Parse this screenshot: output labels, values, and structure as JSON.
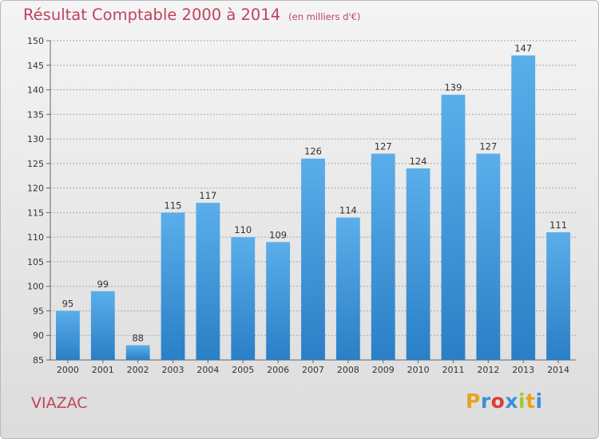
{
  "header": {
    "title": "Résultat Comptable 2000 à 2014",
    "subtitle": "(en milliers d'€)"
  },
  "footer": {
    "commune": "VIAZAC",
    "logo_letters": [
      "P",
      "r",
      "o",
      "x",
      "i",
      "t",
      "i"
    ],
    "logo_colors": [
      "#e8a31a",
      "#3a8fd8",
      "#e03a3a",
      "#3a8fd8",
      "#9acd32",
      "#e8a31a",
      "#3a8fd8"
    ]
  },
  "colors": {
    "bar_top": "#5aaeea",
    "bar_bottom": "#2a7fc6",
    "grid": "#a8a8a8",
    "title": "#c0435e"
  },
  "chart_data": {
    "type": "bar",
    "title": "Résultat Comptable 2000 à 2014",
    "subtitle": "(en milliers d'€)",
    "categories": [
      "2000",
      "2001",
      "2002",
      "2003",
      "2004",
      "2005",
      "2006",
      "2007",
      "2008",
      "2009",
      "2010",
      "2011",
      "2012",
      "2013",
      "2014"
    ],
    "values": [
      95,
      99,
      88,
      115,
      117,
      110,
      109,
      126,
      114,
      127,
      124,
      139,
      127,
      147,
      111
    ],
    "ylim": [
      85,
      150
    ],
    "yticks": [
      85,
      90,
      95,
      100,
      105,
      110,
      115,
      120,
      125,
      130,
      135,
      140,
      145,
      150
    ],
    "grid": true,
    "data_labels": true
  }
}
